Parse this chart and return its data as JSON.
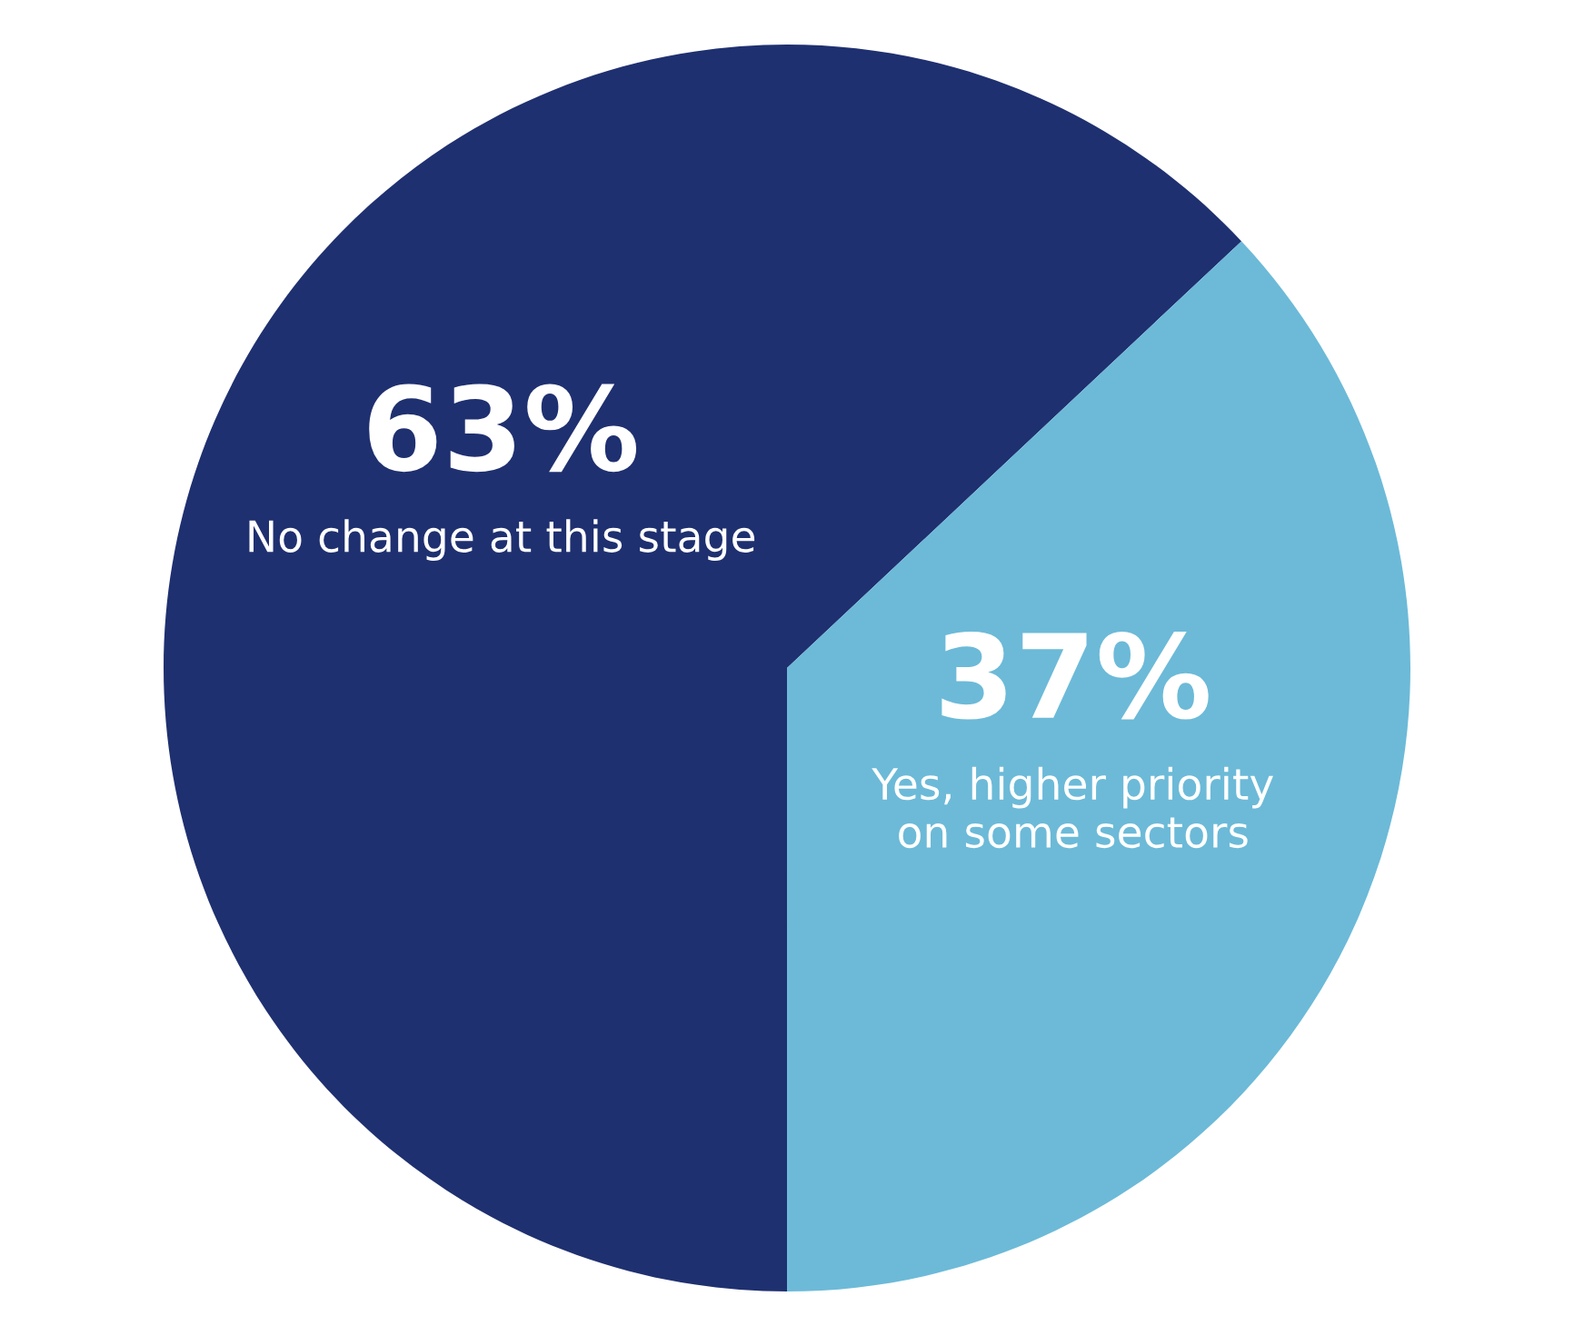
{
  "chart_data": {
    "type": "pie",
    "categories": [
      "No change at this stage",
      "Yes, higher priority\non some sectors"
    ],
    "values": [
      63,
      37
    ],
    "colors": [
      "#1f3070",
      "#6cbad8"
    ],
    "value_labels": [
      "63%",
      "37%"
    ],
    "legend": false
  }
}
